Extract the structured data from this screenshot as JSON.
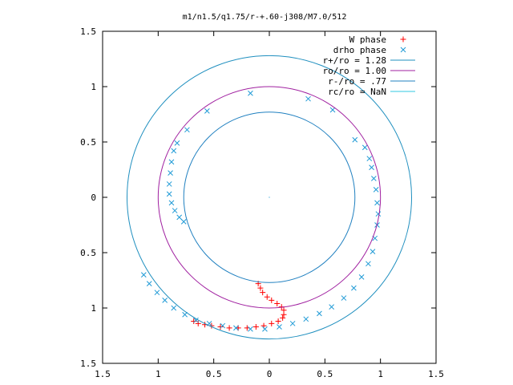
{
  "chart_data": {
    "type": "scatter",
    "title": "m1/n1.5/q1.75/r-+.60-j308/M7.0/512",
    "xlim": [
      -1.5,
      1.5
    ],
    "ylim": [
      -1.5,
      1.5
    ],
    "x_ticks": [
      -1.5,
      -1,
      -0.5,
      0,
      0.5,
      1,
      1.5
    ],
    "y_ticks": [
      -1.5,
      -1,
      -0.5,
      0,
      0.5,
      1,
      1.5
    ],
    "x_tick_labels": [
      "1.5",
      "1",
      "0.5",
      "0",
      "0.5",
      "1",
      "1.5"
    ],
    "y_tick_labels": [
      "1.5",
      "1",
      "0.5",
      "0",
      "0.5",
      "1",
      "1.5"
    ],
    "grid": false,
    "legend_position": "top-right",
    "series": [
      {
        "name": "W phase",
        "kind": "points",
        "marker": "plus",
        "color": "#ff0000",
        "points": [
          [
            -0.1,
            -0.78
          ],
          [
            -0.08,
            -0.82
          ],
          [
            -0.06,
            -0.86
          ],
          [
            -0.02,
            -0.9
          ],
          [
            0.02,
            -0.93
          ],
          [
            0.07,
            -0.96
          ],
          [
            0.11,
            -0.99
          ],
          [
            0.13,
            -1.02
          ],
          [
            0.13,
            -1.06
          ],
          [
            0.12,
            -1.09
          ],
          [
            0.08,
            -1.12
          ],
          [
            0.02,
            -1.14
          ],
          [
            -0.05,
            -1.16
          ],
          [
            -0.12,
            -1.17
          ],
          [
            -0.2,
            -1.18
          ],
          [
            -0.28,
            -1.18
          ],
          [
            -0.36,
            -1.18
          ],
          [
            -0.44,
            -1.17
          ],
          [
            -0.52,
            -1.16
          ],
          [
            -0.58,
            -1.15
          ],
          [
            -0.64,
            -1.14
          ],
          [
            -0.68,
            -1.12
          ]
        ]
      },
      {
        "name": "drho phase",
        "kind": "points",
        "marker": "cross",
        "color": "#1f9ad6",
        "points": [
          [
            -0.17,
            0.94
          ],
          [
            0.35,
            0.89
          ],
          [
            0.57,
            0.79
          ],
          [
            -0.56,
            0.78
          ],
          [
            -0.74,
            0.61
          ],
          [
            -0.83,
            0.49
          ],
          [
            -0.86,
            0.42
          ],
          [
            0.77,
            0.52
          ],
          [
            0.86,
            0.45
          ],
          [
            0.9,
            0.35
          ],
          [
            0.92,
            0.27
          ],
          [
            0.94,
            0.17
          ],
          [
            0.96,
            0.07
          ],
          [
            0.97,
            -0.05
          ],
          [
            0.98,
            -0.15
          ],
          [
            0.97,
            -0.25
          ],
          [
            0.95,
            -0.37
          ],
          [
            0.93,
            -0.49
          ],
          [
            0.89,
            -0.6
          ],
          [
            0.83,
            -0.72
          ],
          [
            0.76,
            -0.82
          ],
          [
            0.67,
            -0.91
          ],
          [
            0.56,
            -0.99
          ],
          [
            0.45,
            -1.05
          ],
          [
            0.33,
            -1.1
          ],
          [
            0.21,
            -1.14
          ],
          [
            0.09,
            -1.17
          ],
          [
            -0.04,
            -1.19
          ],
          [
            -0.17,
            -1.19
          ],
          [
            -0.3,
            -1.18
          ],
          [
            -0.42,
            -1.16
          ],
          [
            -0.54,
            -1.14
          ],
          [
            -0.66,
            -1.11
          ],
          [
            -0.76,
            -1.06
          ],
          [
            -0.86,
            -1.0
          ],
          [
            -0.94,
            -0.93
          ],
          [
            -1.01,
            -0.86
          ],
          [
            -1.08,
            -0.78
          ],
          [
            -1.13,
            -0.7
          ],
          [
            -0.88,
            0.32
          ],
          [
            -0.89,
            0.22
          ],
          [
            -0.9,
            0.12
          ],
          [
            -0.9,
            0.03
          ],
          [
            -0.88,
            -0.05
          ],
          [
            -0.85,
            -0.12
          ],
          [
            -0.81,
            -0.18
          ],
          [
            -0.77,
            -0.22
          ]
        ]
      },
      {
        "name": "r+/ro = 1.28",
        "kind": "circle",
        "radius": 1.28,
        "color": "#1f8fbf"
      },
      {
        "name": "ro/ro = 1.00",
        "kind": "circle",
        "radius": 1.0,
        "color": "#a020a0"
      },
      {
        "name": "r-/ro = .77",
        "kind": "circle",
        "radius": 0.77,
        "color": "#2080c0"
      },
      {
        "name": "rc/ro = NaN",
        "kind": "circle",
        "radius": null,
        "color": "#30c8e0"
      }
    ]
  }
}
